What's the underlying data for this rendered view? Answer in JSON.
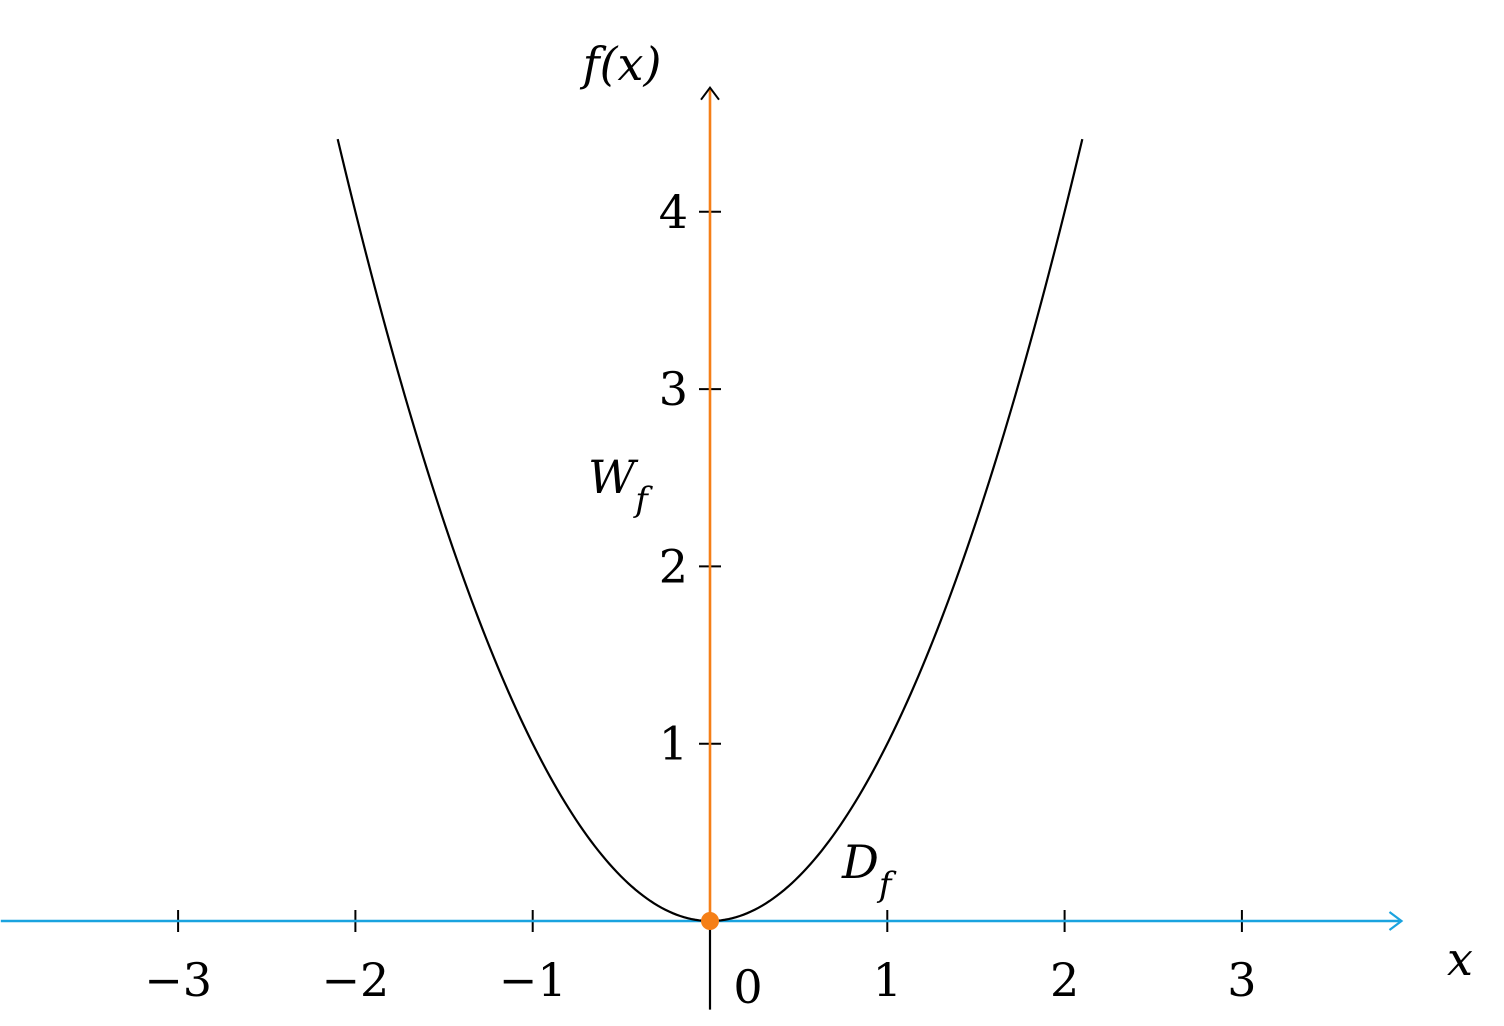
{
  "chart_data": {
    "type": "line",
    "function": "x^2",
    "xlabel": "x",
    "ylabel": "f(x)",
    "xlim": [
      -4,
      3.9
    ],
    "ylim": [
      -0.5,
      4.7
    ],
    "x_ticks": [
      -3,
      -2,
      -1,
      1,
      2,
      3
    ],
    "x_tick_labels": [
      "−3",
      "−2",
      "−1",
      "1",
      "2",
      "3"
    ],
    "y_ticks": [
      1,
      2,
      3,
      4
    ],
    "y_tick_labels": [
      "1",
      "2",
      "3",
      "4"
    ],
    "origin_label": "0",
    "curve_domain": [
      -2.1,
      2.1
    ],
    "annotations": [
      {
        "text": "W",
        "subscript": "f",
        "color": "#f57f17",
        "refers_to": "y-axis (range)"
      },
      {
        "text": "D",
        "subscript": "f",
        "color": "#1aa3df",
        "refers_to": "x-axis (domain)"
      }
    ],
    "highlighted_point": {
      "x": 0,
      "y": 0,
      "color": "#f57f17"
    },
    "colors": {
      "curve": "#000000",
      "range_axis": "#f57f17",
      "domain_axis": "#1aa3df"
    },
    "grid": false
  }
}
